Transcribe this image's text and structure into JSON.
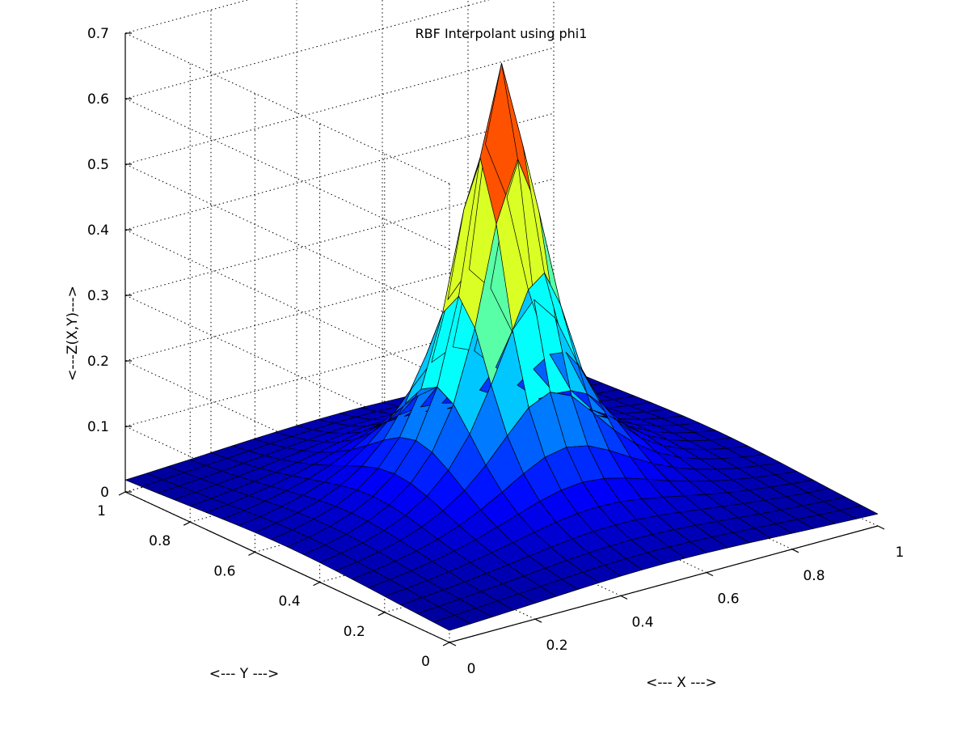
{
  "chart_data": {
    "type": "surface",
    "title": "RBF Interpolant using phi1",
    "xlabel": "<--- X --->",
    "ylabel": "<--- Y --->",
    "zlabel": "<---Z(X,Y)--->",
    "xlim": [
      0,
      1
    ],
    "ylim": [
      0,
      1
    ],
    "zlim": [
      0,
      0.7
    ],
    "x_ticks": [
      0,
      0.2,
      0.4,
      0.6,
      0.8,
      1
    ],
    "y_ticks": [
      0,
      0.2,
      0.4,
      0.6,
      0.8,
      1
    ],
    "z_ticks": [
      0,
      0.1,
      0.2,
      0.3,
      0.4,
      0.5,
      0.6,
      0.7
    ],
    "x_tick_labels": [
      "0",
      "0.2",
      "0.4",
      "0.6",
      "0.8",
      "1"
    ],
    "y_tick_labels": [
      "0",
      "0.2",
      "0.4",
      "0.6",
      "0.8",
      "1"
    ],
    "z_tick_labels": [
      "0",
      "0.1",
      "0.2",
      "0.3",
      "0.4",
      "0.5",
      "0.6",
      "0.7"
    ],
    "grid": true,
    "colormap": "jet",
    "surface": {
      "grid_n": 21,
      "peak": 0.68,
      "peak_x": 0.5,
      "peak_y": 0.5,
      "base": 0.005,
      "width": 0.1
    }
  }
}
